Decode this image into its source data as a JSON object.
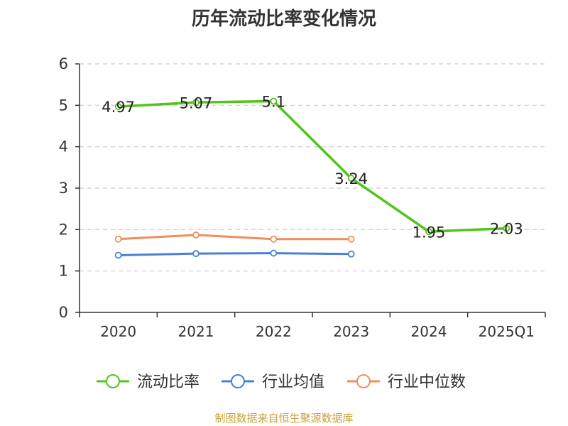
{
  "title": "历年流动比率变化情况",
  "footer": "制图数据来自恒生聚源数据库",
  "colors": {
    "series": [
      "#52c41a",
      "#4a7fd8",
      "#f28c5b"
    ],
    "axis": "#333333",
    "grid": "#cccccc",
    "text": "#333333"
  },
  "chart_data": {
    "type": "line",
    "categories": [
      "2020",
      "2021",
      "2022",
      "2023",
      "2024",
      "2025Q1"
    ],
    "ylim": [
      0,
      6
    ],
    "yticks": [
      0,
      1,
      2,
      3,
      4,
      5,
      6
    ],
    "grid": "horizontal-dashed",
    "legend_position": "bottom",
    "series": [
      {
        "name": "流动比率",
        "values": [
          4.97,
          5.07,
          5.1,
          3.24,
          1.95,
          2.03
        ],
        "labels": [
          "4.97",
          "5.07",
          "5.1",
          "3.24",
          "1.95",
          "2.03"
        ]
      },
      {
        "name": "行业均值",
        "values": [
          1.38,
          1.42,
          1.43,
          1.41,
          null,
          null
        ]
      },
      {
        "name": "行业中位数",
        "values": [
          1.77,
          1.87,
          1.77,
          1.77,
          null,
          null
        ]
      }
    ]
  }
}
